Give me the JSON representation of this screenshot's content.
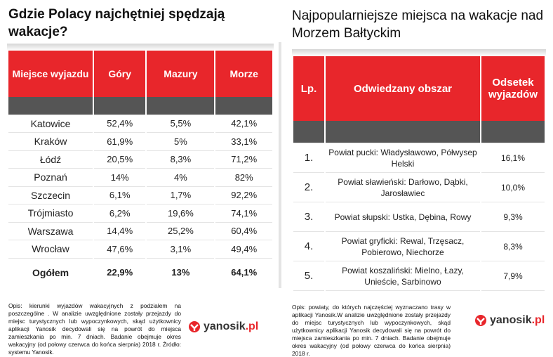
{
  "left": {
    "title": "Gdzie Polacy najchętniej spędzają wakacje?",
    "headers": [
      "Miejsce wyjazdu",
      "Góry",
      "Mazury",
      "Morze"
    ],
    "rows": [
      [
        "Katowice",
        "52,4%",
        "5,5%",
        "42,1%"
      ],
      [
        "Kraków",
        "61,9%",
        "5%",
        "33,1%"
      ],
      [
        "Łódź",
        "20,5%",
        "8,3%",
        "71,2%"
      ],
      [
        "Poznań",
        "14%",
        "4%",
        "82%"
      ],
      [
        "Szczecin",
        "6,1%",
        "1,7%",
        "92,2%"
      ],
      [
        "Trójmiasto",
        "6,2%",
        "19,6%",
        "74,1%"
      ],
      [
        "Warszawa",
        "14,4%",
        "25,2%",
        "60,4%"
      ],
      [
        "Wrocław",
        "47,6%",
        "3,1%",
        "49,4%"
      ]
    ],
    "total": [
      "Ogółem",
      "22,9%",
      "13%",
      "64,1%"
    ],
    "note": "Opis: kierunki wyjazdów wakacyjnych z podziałem na poszczególne . W analizie uwzględnione zostały przejazdy do miejsc turystycznych lub wypoczynkowych, skąd użytkownicy aplikacji Yanosik decydowali się na powrót do miejsca zamieszkania po min. 7 dniach. Badanie obejmuje okres wakacyjny (od połowy czerwca do końca sierpnia) 2018 r. Źródło: systemu Yanosik.",
    "logo_main": "yanosik",
    "logo_suffix": ".pl"
  },
  "right": {
    "title": "Najpopularniejsze miejsca na wakacje nad Morzem Bałtyckim",
    "headers": [
      "Lp.",
      "Odwiedzany obszar",
      "Odsetek wyjazdów"
    ],
    "rows": [
      [
        "1.",
        "Powiat pucki: Władysławowo, Półwysep Helski",
        "16,1%"
      ],
      [
        "2.",
        "Powiat sławieński: Darłowo, Dąbki, Jarosławiec",
        "10,0%"
      ],
      [
        "3.",
        "Powiat słupski: Ustka, Dębina, Rowy",
        "9,3%"
      ],
      [
        "4.",
        "Powiat gryficki: Rewal, Trzęsacz, Pobierowo, Niechorze",
        "8,3%"
      ],
      [
        "5.",
        "Powiat koszaliński: Mielno, Łazy, Unieście, Sarbinowo",
        "7,9%"
      ]
    ],
    "note": "Opis: powiaty, do których najczęściej wyznaczano trasy w aplikacji Yanosik.W analizie uwzględnione zostały przejazdy do miejsc turystycznych lub wypoczynkowych, skąd użytkownicy aplikacji Yanosik decydowali się na powrót do miejsca zamieszkania po min. 7 dniach. Badanie obejmuje okres wakacyjny (od połowy czerwca do końca sierpnia) 2018 r.",
    "logo_main": "yanosik",
    "logo_suffix": ".pl"
  },
  "colors": {
    "accent": "#e8262b",
    "band": "#555555",
    "rule": "#e4e4e4"
  },
  "icons": {
    "logo": "yanosik-logo-icon"
  }
}
